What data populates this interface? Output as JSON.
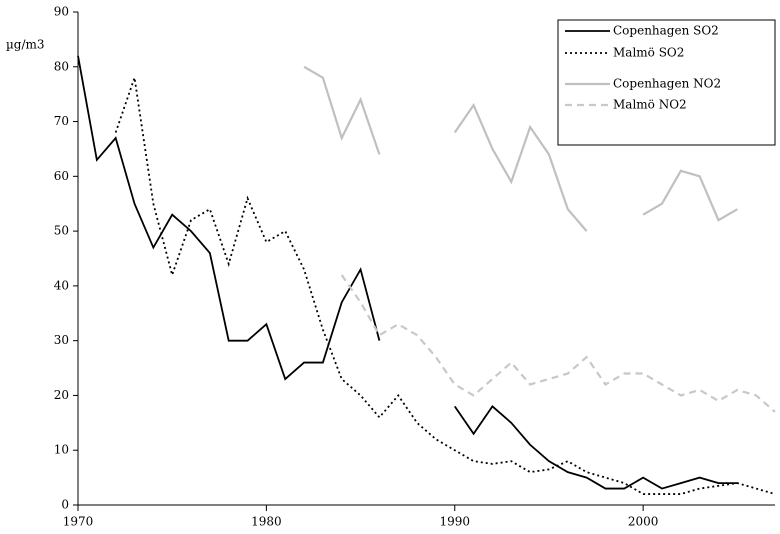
{
  "chart_data": {
    "type": "line",
    "ylabel": "µg/m3",
    "x": [
      1970,
      1971,
      1972,
      1973,
      1974,
      1975,
      1976,
      1977,
      1978,
      1979,
      1980,
      1981,
      1982,
      1983,
      1984,
      1985,
      1986,
      1987,
      1988,
      1989,
      1990,
      1991,
      1992,
      1993,
      1994,
      1995,
      1996,
      1997,
      1998,
      1999,
      2000,
      2001,
      2002,
      2003,
      2004,
      2005,
      2006,
      2007
    ],
    "series": [
      {
        "name": "Copenhagen SO2",
        "color": "#000000",
        "style": "solid",
        "values": [
          82,
          63,
          67,
          55,
          47,
          53,
          50,
          46,
          30,
          30,
          33,
          23,
          26,
          26,
          37,
          43,
          30,
          null,
          null,
          null,
          18,
          13,
          18,
          15,
          11,
          8,
          6,
          5,
          3,
          3,
          5,
          3,
          4,
          5,
          4,
          4,
          null,
          null
        ]
      },
      {
        "name": "Malmö SO2",
        "color": "#000000",
        "style": "dotted",
        "values": [
          null,
          null,
          68,
          78,
          55,
          42,
          52,
          54,
          44,
          56,
          48,
          50,
          43,
          32,
          23,
          20,
          16,
          20,
          15,
          12,
          10,
          8,
          7.5,
          8,
          6,
          6.5,
          8,
          6,
          5,
          4,
          2,
          2,
          2,
          3,
          3.5,
          4,
          3,
          2
        ]
      },
      {
        "name": "Copenhagen NO2",
        "color": "#c0c0c0",
        "style": "solid",
        "values": [
          null,
          null,
          null,
          null,
          null,
          null,
          null,
          null,
          null,
          null,
          null,
          null,
          80,
          78,
          67,
          74,
          64,
          null,
          null,
          null,
          68,
          73,
          65,
          59,
          69,
          64,
          54,
          50,
          null,
          null,
          53,
          55,
          61,
          60,
          52,
          54,
          null,
          null
        ]
      },
      {
        "name": "Malmö NO2",
        "color": "#c8c8c8",
        "style": "dashed",
        "values": [
          null,
          null,
          null,
          null,
          null,
          null,
          null,
          null,
          null,
          null,
          null,
          null,
          null,
          null,
          42,
          37,
          31,
          33,
          31,
          27,
          22,
          20,
          23,
          26,
          22,
          23,
          24,
          27,
          22,
          24,
          24,
          22,
          20,
          21,
          19,
          21,
          20,
          17
        ]
      }
    ],
    "xlim": [
      1970,
      2007
    ],
    "xticks": [
      1970,
      1980,
      1990,
      2000
    ],
    "ylim": [
      0,
      90
    ],
    "yticks": [
      0,
      10,
      20,
      30,
      40,
      50,
      60,
      70,
      80,
      90
    ],
    "legend": "top-right"
  }
}
